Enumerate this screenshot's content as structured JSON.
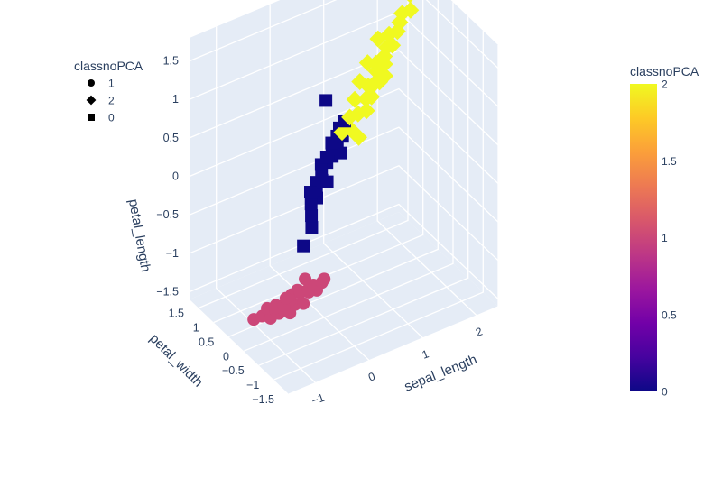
{
  "chart_data": {
    "type": "scatter",
    "subtype": "3d-scatter",
    "axes": {
      "x": {
        "label": "sepal_length",
        "ticks": [
          "−1",
          "0",
          "1",
          "2"
        ]
      },
      "y": {
        "label": "petal_width",
        "ticks": [
          "−1.5",
          "−1",
          "−0.5",
          "0",
          "0.5",
          "1",
          "1.5"
        ]
      },
      "z": {
        "label": "petal_length",
        "ticks": [
          "−1.5",
          "−1",
          "−0.5",
          "0",
          "0.5",
          "1",
          "1.5"
        ]
      }
    },
    "legend": {
      "title": "classnoPCA",
      "placement": "top-left",
      "items": [
        {
          "label": "1",
          "symbol": "circle"
        },
        {
          "label": "2",
          "symbol": "diamond"
        },
        {
          "label": "0",
          "symbol": "square"
        }
      ]
    },
    "colorbar": {
      "title": "classnoPCA",
      "ticks": [
        "2",
        "1.5",
        "1",
        "0.5",
        "0"
      ],
      "range": [
        0,
        2
      ],
      "colors": [
        "#0d0887",
        "#46039f",
        "#7201a8",
        "#9c179e",
        "#bd3786",
        "#d8576b",
        "#ed7953",
        "#fb9f3a",
        "#fdca26",
        "#f0f921"
      ]
    },
    "series": [
      {
        "name": "1",
        "symbol": "circle",
        "color": "#cc4778",
        "points": [
          [
            -1.2,
            0.2,
            -1.35
          ],
          [
            -1.1,
            0.1,
            -1.3
          ],
          [
            -1.0,
            0.0,
            -1.32
          ],
          [
            -0.95,
            0.2,
            -1.28
          ],
          [
            -0.9,
            -0.1,
            -1.25
          ],
          [
            -0.85,
            0.1,
            -1.3
          ],
          [
            -0.8,
            0.0,
            -1.22
          ],
          [
            -0.75,
            -0.2,
            -1.25
          ],
          [
            -0.7,
            0.1,
            -1.28
          ],
          [
            -0.65,
            0.0,
            -1.2
          ],
          [
            -0.6,
            -0.1,
            -1.22
          ],
          [
            -0.55,
            0.1,
            -1.18
          ],
          [
            -0.5,
            -0.2,
            -1.2
          ],
          [
            -0.45,
            0.0,
            -1.15
          ],
          [
            -0.4,
            0.1,
            -1.18
          ],
          [
            -0.35,
            -0.1,
            -1.12
          ],
          [
            -0.3,
            0.0,
            -1.15
          ],
          [
            -0.25,
            -0.2,
            -1.1
          ],
          [
            -0.2,
            0.0,
            -1.12
          ],
          [
            -0.1,
            -0.1,
            -1.08
          ],
          [
            0.0,
            0.0,
            -1.1
          ],
          [
            -0.9,
            0.0,
            -1.18
          ],
          [
            -0.7,
            -0.1,
            -1.15
          ],
          [
            -0.5,
            0.0,
            -1.1
          ],
          [
            -0.3,
            0.1,
            -1.05
          ],
          [
            -0.6,
            0.2,
            -1.25
          ],
          [
            -0.8,
            0.2,
            -1.32
          ],
          [
            -0.4,
            -0.2,
            -1.08
          ]
        ]
      },
      {
        "name": "2",
        "symbol": "diamond",
        "color": "#f0f921",
        "points": [
          [
            0.5,
            0.3,
            0.55
          ],
          [
            0.6,
            0.2,
            0.6
          ],
          [
            0.7,
            0.4,
            0.65
          ],
          [
            0.8,
            0.3,
            0.7
          ],
          [
            0.9,
            0.2,
            0.75
          ],
          [
            1.0,
            0.4,
            0.8
          ],
          [
            1.05,
            0.3,
            0.85
          ],
          [
            1.1,
            0.5,
            0.9
          ],
          [
            1.15,
            0.4,
            0.95
          ],
          [
            1.2,
            0.3,
            1.0
          ],
          [
            1.25,
            0.5,
            1.05
          ],
          [
            1.3,
            0.6,
            1.1
          ],
          [
            1.35,
            0.4,
            1.15
          ],
          [
            1.4,
            0.5,
            1.2
          ],
          [
            1.5,
            0.6,
            1.25
          ],
          [
            1.55,
            0.5,
            1.3
          ],
          [
            1.6,
            0.7,
            1.35
          ],
          [
            1.7,
            0.6,
            1.4
          ],
          [
            1.8,
            0.7,
            1.45
          ],
          [
            1.9,
            0.8,
            1.5
          ],
          [
            2.0,
            0.7,
            1.55
          ],
          [
            2.1,
            0.9,
            1.65
          ],
          [
            2.2,
            0.8,
            1.75
          ],
          [
            2.3,
            1.0,
            1.85
          ],
          [
            0.85,
            0.5,
            0.8
          ],
          [
            1.0,
            0.6,
            0.95
          ],
          [
            1.2,
            0.7,
            1.1
          ],
          [
            1.45,
            0.8,
            1.3
          ],
          [
            0.7,
            0.1,
            0.5
          ],
          [
            1.3,
            0.3,
            1.05
          ]
        ]
      },
      {
        "name": "0",
        "symbol": "square",
        "color": "#0d0887",
        "points": [
          [
            -0.5,
            -0.2,
            -0.45
          ],
          [
            -0.4,
            -0.3,
            -0.2
          ],
          [
            -0.35,
            -0.2,
            -0.1
          ],
          [
            -0.3,
            -0.1,
            0.0
          ],
          [
            -0.25,
            -0.2,
            0.1
          ],
          [
            -0.2,
            -0.1,
            0.15
          ],
          [
            -0.15,
            0.0,
            0.2
          ],
          [
            -0.1,
            -0.1,
            0.25
          ],
          [
            -0.05,
            0.0,
            0.3
          ],
          [
            0.0,
            0.1,
            0.35
          ],
          [
            0.05,
            0.0,
            0.4
          ],
          [
            0.1,
            0.1,
            0.42
          ],
          [
            0.15,
            0.0,
            0.45
          ],
          [
            0.2,
            0.1,
            0.5
          ],
          [
            0.25,
            0.2,
            0.52
          ],
          [
            0.3,
            0.1,
            0.55
          ],
          [
            0.35,
            0.2,
            0.58
          ],
          [
            0.4,
            0.1,
            0.6
          ],
          [
            0.45,
            0.3,
            0.62
          ],
          [
            0.5,
            0.2,
            0.65
          ],
          [
            0.55,
            0.3,
            0.68
          ],
          [
            0.2,
            0.3,
            1.05
          ],
          [
            0.0,
            -0.1,
            0.2
          ],
          [
            -0.2,
            0.1,
            0.05
          ],
          [
            0.3,
            0.0,
            0.45
          ]
        ]
      }
    ]
  }
}
